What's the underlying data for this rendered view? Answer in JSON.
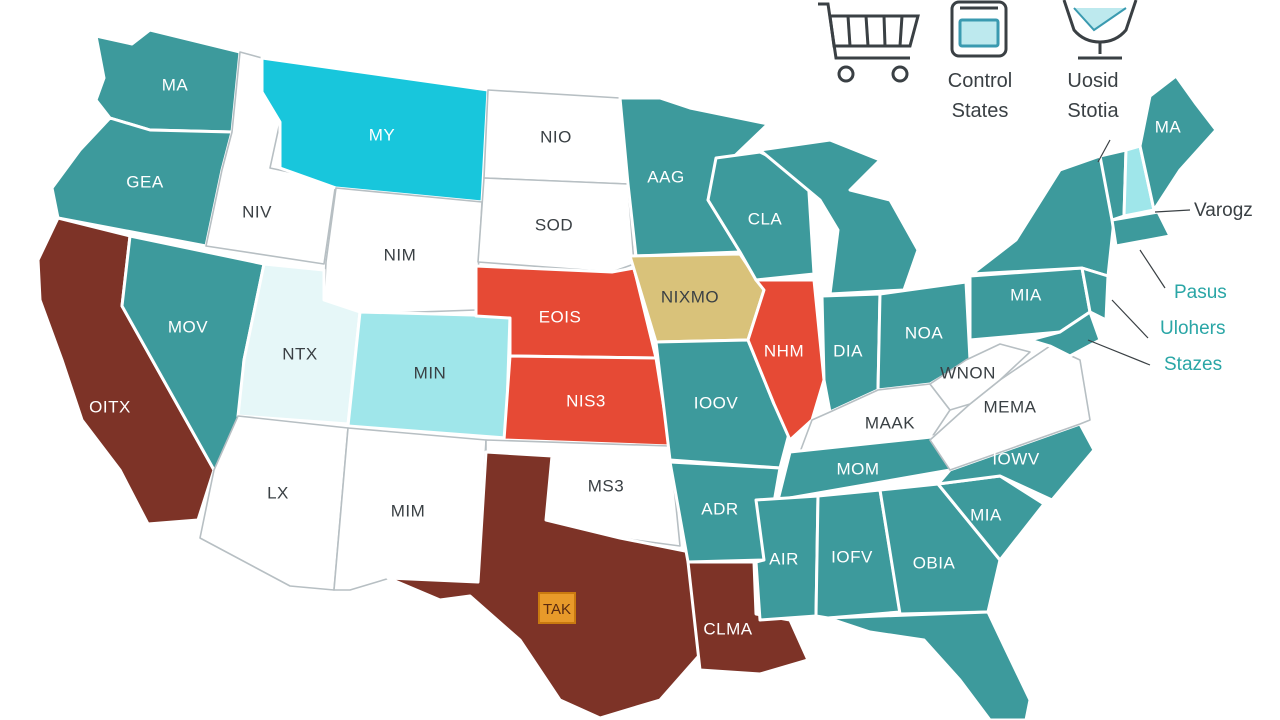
{
  "colors": {
    "teal": "#3d9a9c",
    "cyan": "#18c6dc",
    "pale_teal": "#9fe6ea",
    "pale": "#e6f7f8",
    "brown": "#7d3327",
    "red": "#e64a35",
    "tan": "#d9c27a",
    "white": "#ffffff",
    "label_dark": "#3a4044",
    "label_light": "#ffffff"
  },
  "legend": {
    "cart_icon": "shopping-cart-icon",
    "control_icon": "jar-icon",
    "control_label": "Control\nStates",
    "cup_icon": "cup-icon",
    "other_label": "Uosid\nStotia"
  },
  "callouts": {
    "vt": "Varogz",
    "a": "Pasus",
    "b": "Ulohers",
    "c": "Stazes"
  },
  "states": {
    "wa": {
      "label": "MA",
      "fill": "teal"
    },
    "or": {
      "label": "GEA",
      "fill": "teal"
    },
    "ca": {
      "label": "OITX",
      "fill": "brown"
    },
    "id": {
      "label": "NIV",
      "fill": "white"
    },
    "nv": {
      "label": "MOV",
      "fill": "teal"
    },
    "mt": {
      "label": "MY",
      "fill": "cyan"
    },
    "wy": {
      "label": "NIM",
      "fill": "white"
    },
    "ut": {
      "label": "NTX",
      "fill": "pale"
    },
    "co": {
      "label": "MIN",
      "fill": "pale_teal"
    },
    "az": {
      "label": "LX",
      "fill": "white"
    },
    "nm": {
      "label": "MIM",
      "fill": "white"
    },
    "nd": {
      "label": "NIO",
      "fill": "white"
    },
    "sd": {
      "label": "SOD",
      "fill": "white"
    },
    "ne": {
      "label": "EOIS",
      "fill": "red"
    },
    "ks": {
      "label": "NIS3",
      "fill": "red"
    },
    "ok": {
      "label": "MS3",
      "fill": "white"
    },
    "tx": {
      "label": "TAK",
      "fill": "brown"
    },
    "mn": {
      "label": "AAG",
      "fill": "teal"
    },
    "ia": {
      "label": "NIXMO",
      "fill": "tan"
    },
    "mo": {
      "label": "IOOV",
      "fill": "teal"
    },
    "ar": {
      "label": "ADR",
      "fill": "teal"
    },
    "la": {
      "label": "CLMA",
      "fill": "brown"
    },
    "wi": {
      "label": "CLA",
      "fill": "teal"
    },
    "il": {
      "label": "NHM",
      "fill": "red"
    },
    "mi": {
      "label": "",
      "fill": "teal"
    },
    "in": {
      "label": "DIA",
      "fill": "teal"
    },
    "oh": {
      "label": "NOA",
      "fill": "teal"
    },
    "ky": {
      "label": "MAAK",
      "fill": "white"
    },
    "tn": {
      "label": "MOM",
      "fill": "teal"
    },
    "ms": {
      "label": "AIR",
      "fill": "teal"
    },
    "al": {
      "label": "IOFV",
      "fill": "teal"
    },
    "ga": {
      "label": "OBIA",
      "fill": "teal"
    },
    "fl": {
      "label": "",
      "fill": "teal"
    },
    "sc": {
      "label": "MIA",
      "fill": "teal"
    },
    "nc": {
      "label": "IOWV",
      "fill": "teal"
    },
    "va": {
      "label": "MEMA",
      "fill": "white"
    },
    "wv": {
      "label": "WNON",
      "fill": "white"
    },
    "pa": {
      "label": "MIA",
      "fill": "teal"
    },
    "ny": {
      "label": "",
      "fill": "teal"
    },
    "me": {
      "label": "MA",
      "fill": "teal"
    },
    "nh": {
      "label": "",
      "fill": "pale_teal"
    },
    "vt": {
      "label": "",
      "fill": "teal"
    },
    "ma": {
      "label": "",
      "fill": "teal"
    },
    "nj": {
      "label": "",
      "fill": "teal"
    },
    "md": {
      "label": "",
      "fill": "teal"
    }
  }
}
